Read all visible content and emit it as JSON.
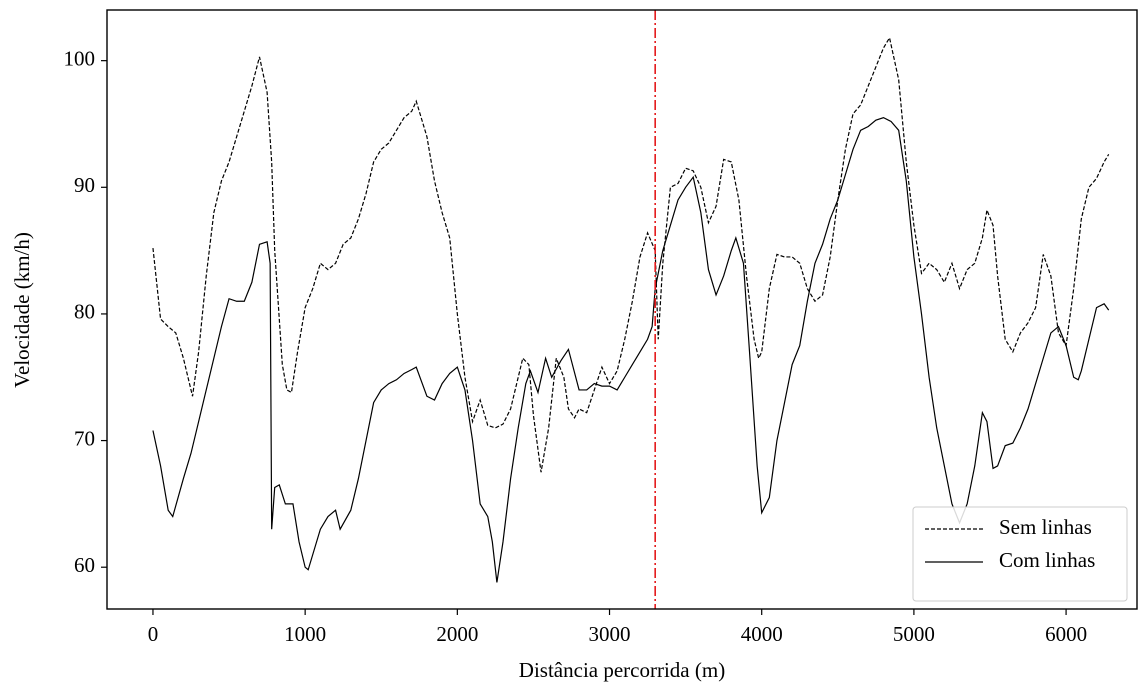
{
  "chart_data": {
    "type": "line",
    "xlabel": "Distância percorrida (m)",
    "ylabel": "Velocidade (km/h)",
    "xlim": [
      -302,
      6466
    ],
    "ylim": [
      56.7,
      104.0
    ],
    "xticks": [
      0,
      1000,
      2000,
      3000,
      4000,
      5000,
      6000
    ],
    "yticks": [
      60,
      70,
      80,
      90,
      100
    ],
    "grid": false,
    "legend": "lower right",
    "vlines": [
      {
        "x": 3300,
        "color": "#e41a1c",
        "linestyle": "dashdot"
      }
    ],
    "series": [
      {
        "name": "Sem linhas",
        "color": "#000000",
        "linestyle": "dashed",
        "x": [
          0,
          50,
          100,
          150,
          200,
          260,
          300,
          350,
          400,
          450,
          500,
          550,
          600,
          650,
          700,
          750,
          780,
          800,
          850,
          880,
          910,
          950,
          1000,
          1050,
          1100,
          1150,
          1200,
          1250,
          1300,
          1350,
          1400,
          1450,
          1500,
          1550,
          1600,
          1650,
          1700,
          1730,
          1800,
          1850,
          1900,
          1950,
          2000,
          2050,
          2100,
          2150,
          2200,
          2250,
          2300,
          2350,
          2400,
          2430,
          2470,
          2500,
          2550,
          2600,
          2650,
          2700,
          2730,
          2770,
          2800,
          2850,
          2900,
          2950,
          3000,
          3050,
          3100,
          3150,
          3200,
          3250,
          3300,
          3320,
          3350,
          3400,
          3450,
          3500,
          3550,
          3600,
          3650,
          3700,
          3750,
          3800,
          3850,
          3900,
          3950,
          3980,
          4000,
          4050,
          4100,
          4150,
          4200,
          4250,
          4300,
          4350,
          4400,
          4450,
          4500,
          4550,
          4600,
          4650,
          4700,
          4750,
          4800,
          4840,
          4900,
          4950,
          5000,
          5050,
          5100,
          5150,
          5200,
          5250,
          5300,
          5350,
          5400,
          5450,
          5480,
          5520,
          5550,
          5600,
          5650,
          5700,
          5750,
          5800,
          5850,
          5900,
          5950,
          6000,
          6050,
          6100,
          6150,
          6200,
          6250,
          6280
        ],
        "values": [
          85.2,
          79.6,
          79.0,
          78.5,
          76.5,
          73.5,
          77,
          83,
          88,
          90.5,
          92,
          94,
          96,
          98,
          100.3,
          97.5,
          92,
          85,
          76,
          74,
          73.8,
          77,
          80.5,
          82,
          84,
          83.5,
          84,
          85.5,
          86,
          87.5,
          89.5,
          92,
          93,
          93.5,
          94.5,
          95.5,
          96,
          96.8,
          94,
          90.5,
          88,
          86,
          80,
          75,
          71.5,
          73.2,
          71.2,
          71,
          71.3,
          72.5,
          75,
          76.5,
          76,
          72,
          67.5,
          71,
          76.5,
          75,
          72.5,
          71.8,
          72.5,
          72.2,
          74,
          75.8,
          74.5,
          75.5,
          78,
          81,
          84.5,
          86.4,
          85,
          78,
          84,
          90,
          90.3,
          91.5,
          91.3,
          90,
          87.2,
          88.5,
          92.2,
          92,
          89,
          83,
          78,
          76.5,
          77,
          82,
          84.7,
          84.5,
          84.5,
          84,
          82,
          81,
          81.5,
          84.5,
          89,
          93,
          95.8,
          96.5,
          98,
          99.5,
          101,
          101.8,
          98.5,
          92,
          87,
          83.2,
          84,
          83.5,
          82.5,
          84,
          82,
          83.5,
          84,
          86,
          88.2,
          87,
          83,
          78,
          77,
          78.5,
          79.3,
          80.5,
          84.7,
          83,
          78.5,
          77.5,
          82,
          87.5,
          90,
          90.7,
          92,
          92.6
        ]
      },
      {
        "name": "Com linhas",
        "color": "#000000",
        "linestyle": "solid",
        "x": [
          0,
          50,
          100,
          130,
          200,
          250,
          300,
          350,
          400,
          450,
          500,
          550,
          600,
          650,
          700,
          750,
          770,
          780,
          800,
          830,
          870,
          920,
          960,
          1000,
          1020,
          1100,
          1150,
          1200,
          1230,
          1300,
          1350,
          1400,
          1450,
          1500,
          1550,
          1600,
          1650,
          1700,
          1730,
          1800,
          1850,
          1900,
          1950,
          2000,
          2050,
          2100,
          2150,
          2200,
          2230,
          2260,
          2300,
          2350,
          2400,
          2450,
          2480,
          2530,
          2580,
          2620,
          2680,
          2730,
          2800,
          2850,
          2900,
          2950,
          3000,
          3050,
          3100,
          3150,
          3200,
          3250,
          3280,
          3300,
          3350,
          3400,
          3450,
          3500,
          3550,
          3600,
          3650,
          3700,
          3750,
          3800,
          3830,
          3880,
          3920,
          3970,
          4000,
          4050,
          4100,
          4150,
          4200,
          4250,
          4300,
          4350,
          4400,
          4450,
          4500,
          4550,
          4600,
          4650,
          4700,
          4750,
          4800,
          4850,
          4900,
          4950,
          5000,
          5050,
          5100,
          5150,
          5200,
          5250,
          5300,
          5350,
          5400,
          5450,
          5480,
          5520,
          5550,
          5600,
          5650,
          5700,
          5750,
          5800,
          5850,
          5900,
          5950,
          6000,
          6050,
          6080,
          6100,
          6150,
          6200,
          6250,
          6280
        ],
        "values": [
          70.8,
          68,
          64.5,
          64,
          67,
          69,
          71.5,
          74,
          76.5,
          79,
          81.2,
          81,
          81,
          82.5,
          85.5,
          85.7,
          84,
          63,
          66.3,
          66.5,
          65,
          65,
          62,
          60,
          59.8,
          63,
          64,
          64.5,
          63,
          64.5,
          67,
          70,
          73,
          74,
          74.5,
          74.8,
          75.3,
          75.6,
          75.8,
          73.5,
          73.2,
          74.5,
          75.3,
          75.8,
          74,
          70,
          65,
          64,
          62,
          58.8,
          62,
          67,
          71,
          74.5,
          75.5,
          73.8,
          76.5,
          75,
          76.3,
          77.2,
          74,
          74,
          74.5,
          74.3,
          74.3,
          74,
          75,
          76,
          77,
          78,
          79,
          82,
          85,
          87,
          89,
          90,
          90.8,
          88,
          83.5,
          81.5,
          83,
          85,
          86,
          84,
          77,
          68,
          64.3,
          65.5,
          70,
          73,
          76,
          77.5,
          81,
          84,
          85.5,
          87.5,
          89,
          91,
          93,
          94.5,
          94.8,
          95.3,
          95.5,
          95.2,
          94.5,
          90.5,
          84.5,
          80,
          75,
          71,
          68,
          65,
          63.5,
          65,
          68,
          72.2,
          71.5,
          67.8,
          68,
          69.6,
          69.8,
          71,
          72.5,
          74.5,
          76.5,
          78.5,
          79,
          77.5,
          75,
          74.8,
          75.5,
          78,
          80.5,
          80.8,
          80.3
        ]
      }
    ]
  }
}
